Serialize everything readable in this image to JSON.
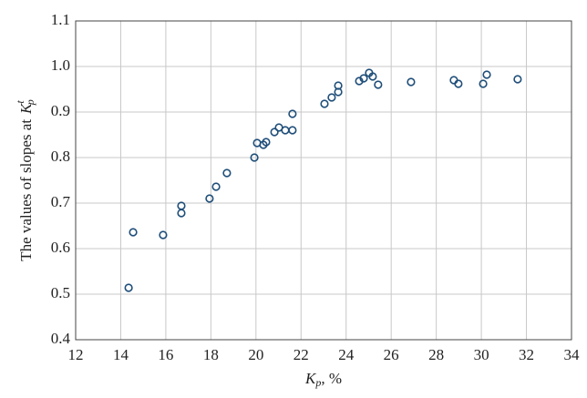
{
  "chart_data": {
    "type": "scatter",
    "xlabel": {
      "symbol": "K",
      "sub": "p",
      "text": ", %"
    },
    "ylabel": {
      "text": "The values of slopes at",
      "symbol": "K",
      "sub": "p",
      "sup": "t"
    },
    "x": [
      14.35,
      14.55,
      15.88,
      16.69,
      16.69,
      17.94,
      18.23,
      18.71,
      19.93,
      20.05,
      20.33,
      20.45,
      20.82,
      21.02,
      21.3,
      21.62,
      21.62,
      23.04,
      23.36,
      23.65,
      23.65,
      24.58,
      24.78,
      25.02,
      25.18,
      25.42,
      26.88,
      28.78,
      28.98,
      30.08,
      30.24,
      31.61
    ],
    "values": [
      0.514,
      0.636,
      0.63,
      0.694,
      0.678,
      0.71,
      0.736,
      0.766,
      0.8,
      0.832,
      0.828,
      0.834,
      0.856,
      0.866,
      0.86,
      0.86,
      0.896,
      0.918,
      0.932,
      0.944,
      0.958,
      0.968,
      0.974,
      0.986,
      0.978,
      0.96,
      0.966,
      0.97,
      0.962,
      0.962,
      0.982,
      0.972
    ],
    "color": "#1f4e79",
    "xlim": [
      12,
      34
    ],
    "xticks": [
      12,
      14,
      16,
      18,
      20,
      22,
      24,
      26,
      28,
      30,
      32,
      34
    ],
    "ylim": [
      0.4,
      1.1
    ],
    "yticks": [
      0.4,
      0.5,
      0.6,
      0.7,
      0.8,
      0.9,
      {
        "value": 1,
        "label": "1.0"
      },
      1.1
    ],
    "grid": true
  }
}
